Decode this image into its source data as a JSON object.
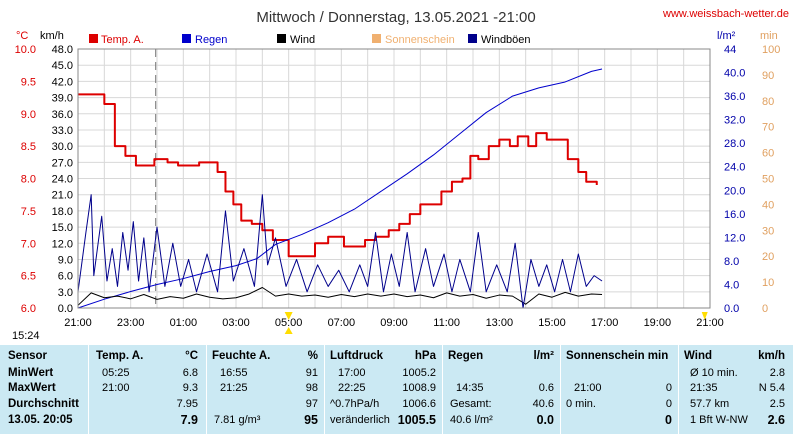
{
  "title": "Mittwoch / Donnerstag, 13.05.2021  -21:00",
  "site": "www.weissbach-wetter.de",
  "timestamp": "15:24",
  "colors": {
    "temp": "#dd0000",
    "rain": "#0000cc",
    "wind": "#000000",
    "sun": "#f0b070",
    "gust": "#00008b",
    "grid": "#d8d8d8",
    "right_axis_rain": "#0000aa",
    "right_axis_min": "#e0a060"
  },
  "chart_data": {
    "type": "line",
    "x_ticks": [
      "21:00",
      "23:00",
      "01:00",
      "03:00",
      "05:00",
      "07:00",
      "09:00",
      "11:00",
      "13:00",
      "15:00",
      "17:00",
      "19:00",
      "21:00"
    ],
    "x_range_hours": [
      0,
      24
    ],
    "axes": {
      "temp": {
        "label": "°C",
        "range": [
          6.0,
          10.0
        ],
        "ticks": [
          "10.0",
          "9.5",
          "9.0",
          "8.5",
          "8.0",
          "7.5",
          "7.0",
          "6.5",
          "6.0"
        ]
      },
      "wind": {
        "label": "km/h",
        "range": [
          0,
          48
        ],
        "ticks": [
          "48.0",
          "45.0",
          "42.0",
          "39.0",
          "36.0",
          "33.0",
          "30.0",
          "27.0",
          "24.0",
          "21.0",
          "18.0",
          "15.0",
          "12.0",
          "9.0",
          "6.0",
          "3.0",
          "0.0"
        ]
      },
      "rain": {
        "label": "l/m²",
        "range": [
          0,
          44
        ],
        "ticks": [
          "44",
          "40.0",
          "36.0",
          "32.0",
          "28.0",
          "24.0",
          "20.0",
          "16.0",
          "12.0",
          "8.0",
          "4.0",
          "0.0"
        ]
      },
      "sun": {
        "label": "min",
        "range": [
          0,
          100
        ],
        "ticks": [
          "100",
          "90",
          "80",
          "70",
          "60",
          "50",
          "40",
          "30",
          "20",
          "10",
          "0"
        ]
      }
    },
    "legend": [
      "Temp. A.",
      "Regen",
      "Wind",
      "Sonnenschein",
      "Windböen"
    ],
    "series": [
      {
        "name": "Temp. A.",
        "axis": "temp",
        "points": [
          [
            0,
            9.3
          ],
          [
            0.8,
            9.3
          ],
          [
            1.0,
            9.15
          ],
          [
            1.4,
            8.5
          ],
          [
            1.8,
            8.35
          ],
          [
            2.2,
            8.2
          ],
          [
            2.6,
            8.2
          ],
          [
            2.9,
            8.3
          ],
          [
            3.4,
            8.25
          ],
          [
            3.8,
            8.2
          ],
          [
            4.2,
            8.2
          ],
          [
            4.6,
            8.25
          ],
          [
            5.0,
            8.25
          ],
          [
            5.3,
            8.1
          ],
          [
            5.6,
            7.8
          ],
          [
            5.9,
            7.6
          ],
          [
            6.2,
            7.35
          ],
          [
            6.6,
            7.3
          ],
          [
            7.0,
            7.2
          ],
          [
            7.4,
            7.05
          ],
          [
            8.0,
            6.8
          ],
          [
            9.0,
            7.0
          ],
          [
            9.5,
            7.1
          ],
          [
            10.1,
            6.95
          ],
          [
            10.5,
            6.95
          ],
          [
            10.9,
            7.05
          ],
          [
            11.3,
            7.1
          ],
          [
            11.8,
            7.2
          ],
          [
            12.2,
            7.3
          ],
          [
            12.6,
            7.45
          ],
          [
            13.0,
            7.6
          ],
          [
            13.4,
            7.6
          ],
          [
            13.8,
            7.8
          ],
          [
            14.2,
            7.95
          ],
          [
            14.6,
            8.0
          ],
          [
            14.9,
            8.35
          ],
          [
            15.2,
            8.3
          ],
          [
            15.6,
            8.5
          ],
          [
            16.0,
            8.6
          ],
          [
            16.4,
            8.5
          ],
          [
            16.7,
            8.65
          ],
          [
            17.1,
            8.5
          ],
          [
            17.4,
            8.7
          ],
          [
            17.8,
            8.6
          ],
          [
            18.2,
            8.6
          ],
          [
            18.6,
            8.3
          ],
          [
            19.0,
            8.1
          ],
          [
            19.3,
            7.95
          ],
          [
            19.7,
            7.9
          ]
        ]
      },
      {
        "name": "Regen",
        "axis": "rain",
        "points": [
          [
            0,
            0
          ],
          [
            1,
            1.5
          ],
          [
            2,
            2.8
          ],
          [
            3,
            4.0
          ],
          [
            4,
            5.0
          ],
          [
            5,
            6.2
          ],
          [
            6,
            7.2
          ],
          [
            6.8,
            8.4
          ],
          [
            7.5,
            10.8
          ],
          [
            8.5,
            12.5
          ],
          [
            9.5,
            14.5
          ],
          [
            10.5,
            16.8
          ],
          [
            11.5,
            19.8
          ],
          [
            12.5,
            22.8
          ],
          [
            13.5,
            26.0
          ],
          [
            14.5,
            29.6
          ],
          [
            15.5,
            33.2
          ],
          [
            16.5,
            36.0
          ],
          [
            17.5,
            37.4
          ],
          [
            18.5,
            38.4
          ],
          [
            19.5,
            40.2
          ],
          [
            19.9,
            40.6
          ]
        ]
      },
      {
        "name": "Wind",
        "axis": "wind",
        "points": [
          [
            0,
            0.5
          ],
          [
            0.5,
            2.8
          ],
          [
            1,
            1.9
          ],
          [
            1.5,
            2.2
          ],
          [
            2,
            1.7
          ],
          [
            2.5,
            2.5
          ],
          [
            3,
            1.6
          ],
          [
            3.5,
            2.1
          ],
          [
            4,
            1.8
          ],
          [
            4.5,
            2.6
          ],
          [
            5,
            2.0
          ],
          [
            5.5,
            1.7
          ],
          [
            6,
            1.9
          ],
          [
            6.5,
            2.6
          ],
          [
            7,
            3.8
          ],
          [
            7.5,
            2.2
          ],
          [
            8,
            2.6
          ],
          [
            8.5,
            2.2
          ],
          [
            9,
            2.4
          ],
          [
            9.5,
            2.0
          ],
          [
            10,
            2.5
          ],
          [
            10.5,
            2.1
          ],
          [
            11,
            2.6
          ],
          [
            11.5,
            2.2
          ],
          [
            12,
            2.6
          ],
          [
            12.5,
            2.1
          ],
          [
            13,
            2.4
          ],
          [
            13.5,
            1.9
          ],
          [
            14,
            2.8
          ],
          [
            14.5,
            2.2
          ],
          [
            15,
            2.5
          ],
          [
            15.5,
            1.8
          ],
          [
            16,
            2.4
          ],
          [
            16.5,
            2.2
          ],
          [
            17,
            0.7
          ],
          [
            17.5,
            2.6
          ],
          [
            18,
            2.0
          ],
          [
            18.5,
            2.9
          ],
          [
            19,
            2.2
          ],
          [
            19.5,
            2.6
          ],
          [
            19.9,
            2.5
          ]
        ]
      },
      {
        "name": "Windböen",
        "axis": "wind",
        "points": [
          [
            0,
            3
          ],
          [
            0.3,
            14
          ],
          [
            0.5,
            21
          ],
          [
            0.6,
            6
          ],
          [
            0.9,
            17
          ],
          [
            1.1,
            5
          ],
          [
            1.3,
            11
          ],
          [
            1.5,
            4
          ],
          [
            1.7,
            14
          ],
          [
            1.9,
            7
          ],
          [
            2.1,
            16
          ],
          [
            2.3,
            5
          ],
          [
            2.5,
            13
          ],
          [
            2.7,
            3
          ],
          [
            3.0,
            15
          ],
          [
            3.3,
            4
          ],
          [
            3.6,
            12
          ],
          [
            3.9,
            4
          ],
          [
            4.2,
            9
          ],
          [
            4.5,
            3
          ],
          [
            4.9,
            10
          ],
          [
            5.3,
            3
          ],
          [
            5.6,
            18
          ],
          [
            5.9,
            5
          ],
          [
            6.3,
            11
          ],
          [
            6.7,
            4
          ],
          [
            7.0,
            21
          ],
          [
            7.2,
            8
          ],
          [
            7.5,
            13
          ],
          [
            7.9,
            4
          ],
          [
            8.3,
            9
          ],
          [
            8.7,
            3
          ],
          [
            9.1,
            8
          ],
          [
            9.5,
            4
          ],
          [
            9.9,
            7
          ],
          [
            10.3,
            3
          ],
          [
            10.7,
            8
          ],
          [
            11.0,
            4
          ],
          [
            11.3,
            14
          ],
          [
            11.6,
            3
          ],
          [
            11.9,
            10
          ],
          [
            12.2,
            4
          ],
          [
            12.5,
            14
          ],
          [
            12.8,
            3
          ],
          [
            13.2,
            11
          ],
          [
            13.5,
            4
          ],
          [
            13.9,
            10
          ],
          [
            14.2,
            3
          ],
          [
            14.5,
            9
          ],
          [
            14.9,
            3
          ],
          [
            15.2,
            14
          ],
          [
            15.5,
            3
          ],
          [
            15.9,
            8
          ],
          [
            16.3,
            3
          ],
          [
            16.6,
            12
          ],
          [
            16.9,
            0
          ],
          [
            17.2,
            9
          ],
          [
            17.5,
            4
          ],
          [
            17.8,
            8
          ],
          [
            18.1,
            3
          ],
          [
            18.4,
            9
          ],
          [
            18.7,
            3
          ],
          [
            19.0,
            10
          ],
          [
            19.3,
            4
          ],
          [
            19.6,
            6
          ],
          [
            19.9,
            5
          ]
        ]
      }
    ],
    "marker": {
      "x": 2.95,
      "label": "dashed"
    }
  },
  "stats": {
    "sensor": {
      "header": "Sensor",
      "rows": [
        "MinWert",
        "MaxWert",
        "Durchschnitt",
        "13.05. 20:05"
      ]
    },
    "temp": {
      "header": "Temp. A.",
      "unit": "°C",
      "min_time": "05:25",
      "min": "6.8",
      "max_time": "21:00",
      "max": "9.3",
      "avg": "7.95",
      "current": "7.9"
    },
    "humidity": {
      "header": "Feuchte A.",
      "unit": "%",
      "min_time": "16:55",
      "min": "91",
      "max_time": "21:25",
      "max": "98",
      "avg": "97",
      "abs": "7.81 g/m³",
      "current": "95"
    },
    "pressure": {
      "header": "Luftdruck",
      "unit": "hPa",
      "min_time": "17:00",
      "min": "1005.2",
      "max_time": "22:25",
      "max": "1008.9",
      "trend_label": "^0.7hPa/h",
      "avg": "1006.6",
      "change_label": "veränderlich",
      "current": "1005.5"
    },
    "rain": {
      "header": "Regen",
      "unit": "l/m²",
      "max_time": "14:35",
      "max": "0.6",
      "total_label": "Gesamt:",
      "total": "40.6",
      "current_label": "40.6 l/m²",
      "current": "0.0"
    },
    "sun": {
      "header": "Sonnenschein min",
      "max_time": "21:00",
      "max": "0",
      "avg_label": "0 min.",
      "avg": "0",
      "current": "0"
    },
    "wind": {
      "header": "Wind",
      "unit": "km/h",
      "min_label": "Ø 10 min.",
      "min": "2.8",
      "max_time": "21:35",
      "max": "N 5.4",
      "avg_label": "57.7 km",
      "avg": "2.5",
      "current_label": "1 Bft W-NW",
      "current": "2.6"
    }
  }
}
